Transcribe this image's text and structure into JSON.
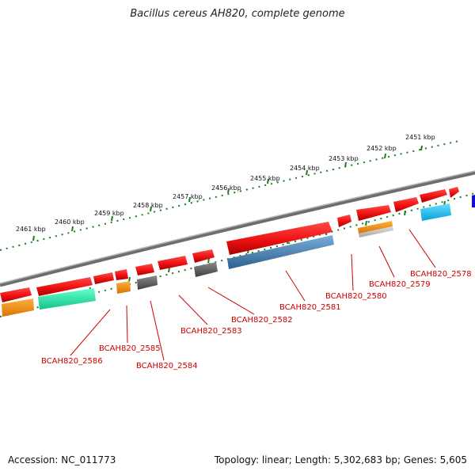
{
  "title": "Bacillus cereus AH820, complete genome",
  "footer": {
    "accession": "Accession: NC_011773",
    "topology": "Topology: linear; Length: 5,302,683 bp; Genes: 5,605"
  },
  "colors": {
    "backbone": "#7a7a7a",
    "ruler": "#1e7d1e",
    "label": "#cc0000",
    "red_gene": "#ee1111",
    "orange_gene": "#f08c00",
    "teal_gene": "#22dd99",
    "gray_gene": "#606060",
    "steel_gene": "#4a7fb0",
    "cyan_gene": "#22bbee",
    "blue_gene": "#1111cc"
  },
  "ruler_ticks": [
    {
      "label": "2451 kbp"
    },
    {
      "label": "2452 kbp"
    },
    {
      "label": "2453 kbp"
    },
    {
      "label": "2454 kbp"
    },
    {
      "label": "2455 kbp"
    },
    {
      "label": "2456 kbp"
    },
    {
      "label": "2457 kbp"
    },
    {
      "label": "2458 kbp"
    },
    {
      "label": "2459 kbp"
    },
    {
      "label": "2460 kbp"
    },
    {
      "label": "2461 kbp"
    }
  ],
  "gene_labels": [
    {
      "id": "BCAH820_2578"
    },
    {
      "id": "BCAH820_2579"
    },
    {
      "id": "BCAH820_2580"
    },
    {
      "id": "BCAH820_2581"
    },
    {
      "id": "BCAH820_2582"
    },
    {
      "id": "BCAH820_2583"
    },
    {
      "id": "BCAH820_2584"
    },
    {
      "id": "BCAH820_2585"
    },
    {
      "id": "BCAH820_2586"
    }
  ]
}
